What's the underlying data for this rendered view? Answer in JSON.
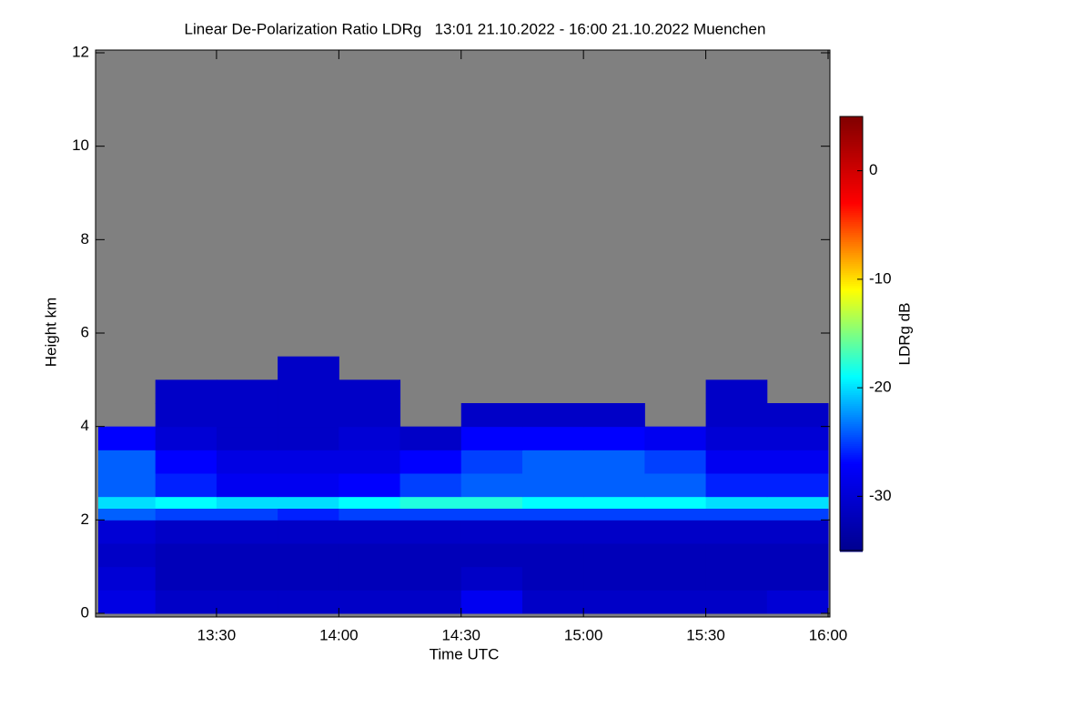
{
  "chart_data": {
    "type": "heatmap",
    "title": "Linear De-Polarization Ratio LDRg   13:01 21.10.2022 - 16:00 21.10.2022 Muenchen",
    "x_label": "Time UTC",
    "y_label": "Height km",
    "xlim": [
      13.0167,
      16.0
    ],
    "ylim": [
      0,
      12
    ],
    "xticks": [
      {
        "value": 13.5,
        "label": "13:30"
      },
      {
        "value": 14,
        "label": "14:00"
      },
      {
        "value": 14.5,
        "label": "14:30"
      },
      {
        "value": 15,
        "label": "15:00"
      },
      {
        "value": 15.5,
        "label": "15:30"
      },
      {
        "value": 16,
        "label": "16:00"
      }
    ],
    "yticks": [
      0,
      2,
      4,
      6,
      8,
      10,
      12
    ],
    "x_bins": [
      13.0167,
      13.25,
      13.5,
      13.75,
      14,
      14.25,
      14.5,
      14.75,
      15,
      15.25,
      15.5,
      15.75,
      16
    ],
    "y_bins": [
      0,
      0.5,
      1,
      1.5,
      2,
      2.25,
      2.5,
      3,
      3.5,
      4,
      4.5,
      5,
      5.5,
      6,
      12
    ],
    "z": [
      [
        -29,
        -31,
        -31,
        -31,
        -31,
        -31,
        -28,
        -31,
        -31,
        -31,
        -31,
        -30
      ],
      [
        -30,
        -32,
        -32,
        -32,
        -32,
        -32,
        -31,
        -32,
        -32,
        -32,
        -32,
        -32
      ],
      [
        -31,
        -32,
        -32,
        -32,
        -32,
        -32,
        -32,
        -32,
        -32,
        -32,
        -32,
        -32
      ],
      [
        -30,
        -31,
        -31,
        -31,
        -31,
        -31,
        -31,
        -31,
        -31,
        -31,
        -31,
        -31
      ],
      [
        -24,
        -25,
        -25,
        -26,
        -25,
        -25,
        -25,
        -25,
        -25,
        -25,
        -25,
        -25
      ],
      [
        -20,
        -19,
        -20,
        -20,
        -19,
        -18,
        -18,
        -19,
        -19,
        -19,
        -20,
        -20
      ],
      [
        -24,
        -26,
        -28,
        -28,
        -27,
        -25,
        -24,
        -24,
        -24,
        -24,
        -26,
        -26
      ],
      [
        -24,
        -27,
        -29,
        -29,
        -29,
        -27,
        -25,
        -24,
        -24,
        -25,
        -28,
        -28
      ],
      [
        -27,
        -30,
        -31,
        -31,
        -30,
        -31,
        -27,
        -27,
        -27,
        -28,
        -30,
        -30
      ],
      [
        null,
        -31,
        -31,
        -31,
        -31,
        null,
        -31,
        -31,
        -31,
        null,
        -31,
        -31
      ],
      [
        null,
        -31,
        -31,
        -31,
        -31,
        null,
        null,
        null,
        null,
        null,
        -31,
        null
      ],
      [
        null,
        null,
        null,
        -31,
        null,
        null,
        null,
        null,
        null,
        null,
        null,
        null
      ],
      [
        null,
        null,
        null,
        null,
        null,
        null,
        null,
        null,
        null,
        null,
        null,
        null
      ],
      [
        null,
        null,
        null,
        null,
        null,
        null,
        null,
        null,
        null,
        null,
        null,
        null
      ]
    ],
    "missing_color": "#808080",
    "colorbar": {
      "label": "LDRg dB",
      "zlim": [
        -35,
        5
      ],
      "ticks": [
        0,
        -10,
        -20,
        -30
      ],
      "colors": [
        "#00008f",
        "#0000ff",
        "#00ffff",
        "#ffff00",
        "#ff0000",
        "#800000"
      ]
    }
  }
}
